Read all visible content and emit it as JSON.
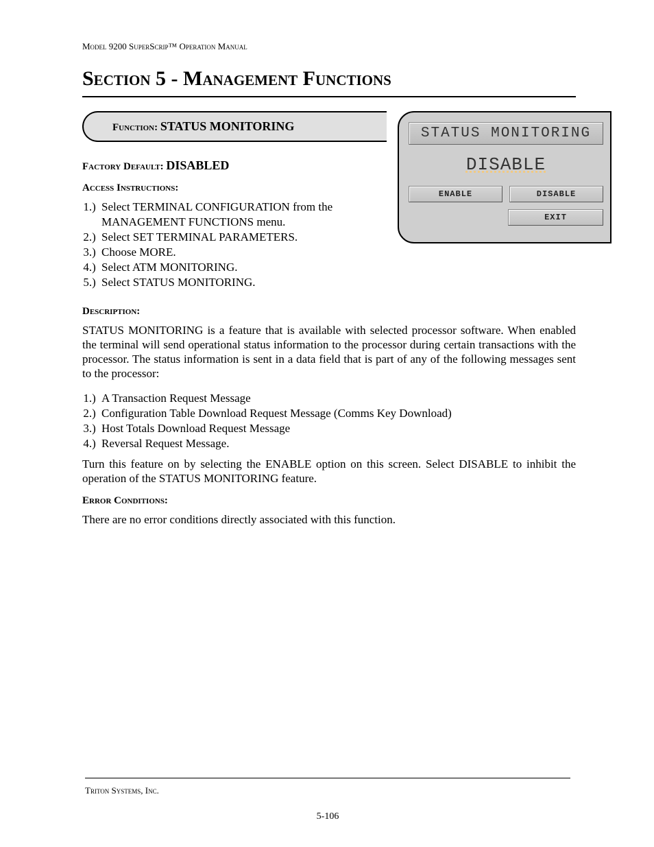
{
  "header": "Model 9200 SuperScrip™ Operation Manual",
  "section_title": "Section 5 - Management Functions",
  "function_box": {
    "label": "Function:  ",
    "name": "STATUS MONITORING"
  },
  "factory_default": {
    "label": "Factory Default: ",
    "value": "DISABLED"
  },
  "access": {
    "heading": "Access Instructions:",
    "steps": [
      "Select TERMINAL CONFIGURATION from the MANAGEMENT FUNCTIONS menu.",
      "Select SET TERMINAL PARAMETERS.",
      "Choose MORE.",
      "Select ATM MONITORING.",
      "Select STATUS MONITORING."
    ]
  },
  "terminal": {
    "title": "STATUS MONITORING",
    "status": "DISABLE",
    "buttons": {
      "enable": "ENABLE",
      "disable": "DISABLE",
      "exit": "EXIT"
    }
  },
  "description": {
    "heading": "Description:",
    "p1": "STATUS MONITORING is a  feature that is available with selected processor software.  When enabled the terminal will send operational status information to the processor during certain transactions with the processor.  The status information is sent in a data field that is part of any of the following messages sent to the processor:",
    "msgs": [
      "A Transaction Request Message",
      "Configuration Table Download Request Message (Comms Key Download)",
      "Host Totals Download Request Message",
      "Reversal Request Message."
    ],
    "p2": "Turn this feature on by selecting the ENABLE option on this screen.  Select DISABLE to inhibit the operation of the STATUS MONITORING feature."
  },
  "errors": {
    "heading": "Error Conditions:",
    "text": "There are no error conditions directly associated with this function."
  },
  "footer": {
    "company": "Triton Systems, Inc.",
    "page": "5-106"
  }
}
